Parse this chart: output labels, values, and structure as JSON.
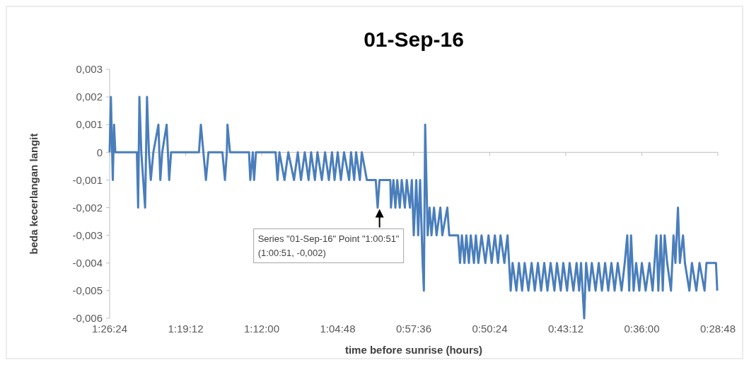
{
  "chart_data": {
    "type": "line",
    "title": "01-Sep-16",
    "xlabel": "time before sunrise (hours)",
    "ylabel": "beda kecerlangan langit",
    "xlim": [
      1.44,
      0.48
    ],
    "xticks": [
      {
        "value": 1.44,
        "label": "1:26:24"
      },
      {
        "value": 1.32,
        "label": "1:19:12"
      },
      {
        "value": 1.2,
        "label": "1:12:00"
      },
      {
        "value": 1.08,
        "label": "1:04:48"
      },
      {
        "value": 0.96,
        "label": "0:57:36"
      },
      {
        "value": 0.84,
        "label": "0:50:24"
      },
      {
        "value": 0.72,
        "label": "0:43:12"
      },
      {
        "value": 0.6,
        "label": "0:36:00"
      },
      {
        "value": 0.48,
        "label": "0:28:48"
      }
    ],
    "ylim": [
      -0.006,
      0.003
    ],
    "yticks": [
      {
        "value": 0.003,
        "label": "0,003"
      },
      {
        "value": 0.002,
        "label": "0,002"
      },
      {
        "value": 0.001,
        "label": "0,001"
      },
      {
        "value": 0,
        "label": "0"
      },
      {
        "value": -0.001,
        "label": "-0,001"
      },
      {
        "value": -0.002,
        "label": "-0,002"
      },
      {
        "value": -0.003,
        "label": "-0,003"
      },
      {
        "value": -0.004,
        "label": "-0,004"
      },
      {
        "value": -0.005,
        "label": "-0,005"
      },
      {
        "value": -0.006,
        "label": "-0,006"
      }
    ],
    "annotations": [
      {
        "text": "Series \"01-Sep-16\" Point \"1:00:51\"\n(1:00:51, -0,002)",
        "x": 1.014,
        "y": -0.002
      }
    ],
    "series": [
      {
        "color": "#4a7ebb",
        "x": [
          1.44,
          1.438,
          1.435,
          1.433,
          1.431,
          1.397,
          1.395,
          1.393,
          1.39,
          1.384,
          1.381,
          1.378,
          1.375,
          1.371,
          1.363,
          1.36,
          1.357,
          1.35,
          1.346,
          1.343,
          1.299,
          1.296,
          1.292,
          1.288,
          1.284,
          1.262,
          1.258,
          1.255,
          1.254,
          1.25,
          1.22,
          1.218,
          1.214,
          1.212,
          1.209,
          1.178,
          1.175,
          1.172,
          1.164,
          1.158,
          1.149,
          1.143,
          1.138,
          1.132,
          1.126,
          1.122,
          1.116,
          1.112,
          1.105,
          1.1,
          1.094,
          1.089,
          1.085,
          1.08,
          1.075,
          1.07,
          1.062,
          1.059,
          1.054,
          1.051,
          1.045,
          1.042,
          1.034,
          1.02,
          1.017,
          1.014,
          0.997,
          0.996,
          0.992,
          0.989,
          0.986,
          0.982,
          0.979,
          0.974,
          0.971,
          0.966,
          0.963,
          0.96,
          0.956,
          0.953,
          0.95,
          0.946,
          0.944,
          0.942,
          0.938,
          0.935,
          0.932,
          0.928,
          0.924,
          0.918,
          0.915,
          0.907,
          0.904,
          0.89,
          0.887,
          0.884,
          0.88,
          0.877,
          0.873,
          0.87,
          0.865,
          0.862,
          0.858,
          0.853,
          0.847,
          0.842,
          0.837,
          0.832,
          0.827,
          0.823,
          0.817,
          0.812,
          0.807,
          0.804,
          0.798,
          0.794,
          0.789,
          0.785,
          0.779,
          0.774,
          0.769,
          0.764,
          0.759,
          0.754,
          0.749,
          0.744,
          0.738,
          0.734,
          0.728,
          0.724,
          0.718,
          0.714,
          0.708,
          0.703,
          0.699,
          0.696,
          0.691,
          0.688,
          0.683,
          0.679,
          0.673,
          0.668,
          0.663,
          0.658,
          0.653,
          0.648,
          0.643,
          0.638,
          0.632,
          0.627,
          0.623,
          0.62,
          0.617,
          0.613,
          0.609,
          0.604,
          0.6,
          0.594,
          0.588,
          0.583,
          0.577,
          0.574,
          0.57,
          0.567,
          0.564,
          0.56,
          0.554,
          0.55,
          0.547,
          0.543,
          0.54,
          0.535,
          0.532,
          0.525,
          0.521,
          0.514,
          0.509,
          0.501,
          0.498,
          0.483,
          0.481
        ],
        "values": [
          0,
          0.002,
          -0.001,
          0.001,
          0,
          0,
          -0.002,
          0.002,
          0,
          -0.002,
          0.002,
          0,
          -0.001,
          0,
          0.001,
          -0.001,
          0,
          0.001,
          -0.001,
          0,
          0,
          0.001,
          0,
          -0.001,
          0,
          0,
          -0.001,
          0,
          0.001,
          0,
          0,
          -0.001,
          0,
          -0.001,
          0,
          0,
          -0.001,
          0,
          -0.001,
          0,
          -0.001,
          0,
          -0.001,
          0,
          -0.001,
          0,
          -0.001,
          0,
          -0.001,
          0,
          -0.001,
          0,
          -0.001,
          0,
          -0.001,
          0,
          -0.001,
          0,
          -0.001,
          0,
          -0.001,
          0,
          -0.001,
          -0.001,
          -0.002,
          -0.001,
          -0.001,
          -0.002,
          -0.001,
          -0.002,
          -0.001,
          -0.002,
          -0.001,
          -0.002,
          -0.001,
          -0.002,
          -0.001,
          -0.003,
          -0.001,
          -0.003,
          -0.001,
          -0.004,
          -0.005,
          0.001,
          -0.003,
          -0.002,
          -0.003,
          -0.002,
          -0.003,
          -0.002,
          -0.003,
          -0.002,
          -0.003,
          -0.003,
          -0.004,
          -0.003,
          -0.004,
          -0.003,
          -0.004,
          -0.003,
          -0.004,
          -0.003,
          -0.004,
          -0.003,
          -0.004,
          -0.003,
          -0.004,
          -0.003,
          -0.004,
          -0.003,
          -0.004,
          -0.003,
          -0.005,
          -0.004,
          -0.005,
          -0.004,
          -0.005,
          -0.004,
          -0.005,
          -0.004,
          -0.005,
          -0.004,
          -0.005,
          -0.004,
          -0.005,
          -0.004,
          -0.005,
          -0.004,
          -0.005,
          -0.004,
          -0.005,
          -0.004,
          -0.005,
          -0.004,
          -0.005,
          -0.004,
          -0.006,
          -0.004,
          -0.005,
          -0.004,
          -0.005,
          -0.004,
          -0.005,
          -0.004,
          -0.005,
          -0.004,
          -0.005,
          -0.004,
          -0.005,
          -0.004,
          -0.003,
          -0.005,
          -0.003,
          -0.005,
          -0.004,
          -0.005,
          -0.004,
          -0.005,
          -0.004,
          -0.005,
          -0.003,
          -0.005,
          -0.003,
          -0.005,
          -0.003,
          -0.004,
          -0.005,
          -0.003,
          -0.004,
          -0.002,
          -0.004,
          -0.003,
          -0.004,
          -0.005,
          -0.004,
          -0.005,
          -0.004,
          -0.005,
          -0.004,
          -0.004,
          -0.005
        ]
      }
    ]
  }
}
